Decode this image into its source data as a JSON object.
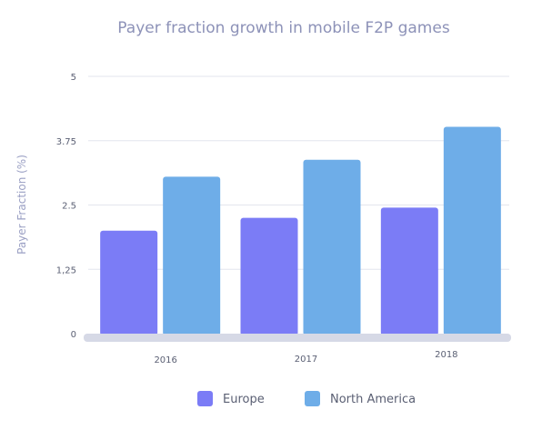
{
  "chart_data": {
    "type": "bar",
    "title": "Payer fraction growth in mobile F2P games",
    "xlabel": "",
    "ylabel": "Payer Fraction (%)",
    "categories": [
      "2016",
      "2017",
      "2018"
    ],
    "series": [
      {
        "name": "Europe",
        "values": [
          2.0,
          2.25,
          2.45
        ],
        "color": "#7b7cf6"
      },
      {
        "name": "North America",
        "values": [
          3.05,
          3.38,
          4.02
        ],
        "color": "#6eade8"
      }
    ],
    "ylim": [
      0,
      5
    ],
    "yticks": [
      "0",
      "1,25",
      "2.5",
      "3.75",
      "5"
    ],
    "grid": true,
    "legend": "bottom"
  }
}
